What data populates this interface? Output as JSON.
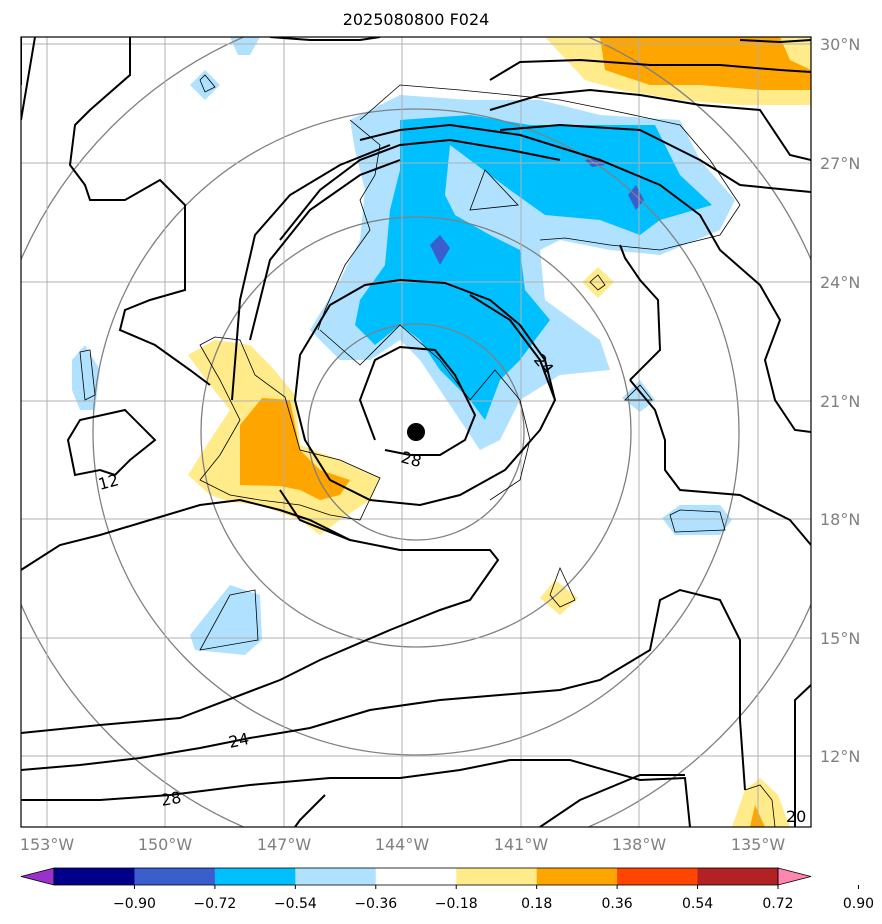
{
  "title": "2025080800 F024",
  "lat_labels": [
    "30°N",
    "27°N",
    "24°N",
    "21°N",
    "18°N",
    "15°N",
    "12°N"
  ],
  "lon_labels": [
    "153°W",
    "150°W",
    "147°W",
    "144°W",
    "141°W",
    "138°W",
    "135°W"
  ],
  "colorbar": {
    "labels": [
      "−0.90",
      "−0.72",
      "−0.54",
      "−0.36",
      "−0.18",
      "0.18",
      "0.36",
      "0.54",
      "0.72",
      "0.90"
    ],
    "colors": [
      "#9932cc",
      "#00008b",
      "#3a5fcd",
      "#00bfff",
      "#b0e2ff",
      "#ffffff",
      "#ffeb8a",
      "#ffa500",
      "#ff4500",
      "#b22222",
      "#ff86b0"
    ]
  },
  "contour_labels": [
    "28",
    "24",
    "12",
    "24",
    "28",
    "20"
  ],
  "storm_center": {
    "lat": 20.3,
    "lon": "143.7°W"
  }
}
